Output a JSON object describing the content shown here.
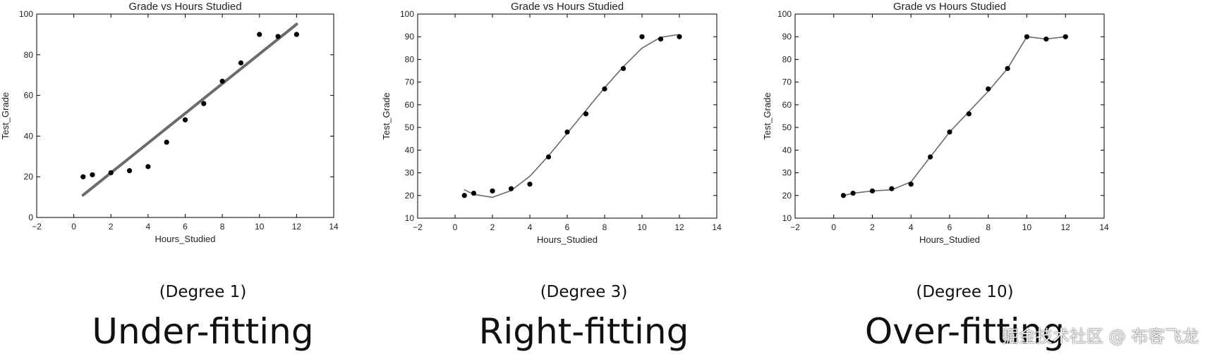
{
  "chart_data": [
    {
      "type": "scatter",
      "title": "Grade vs Hours Studied",
      "xlabel": "Hours_Studied",
      "ylabel": "Test_Grade",
      "xlim": [
        -2,
        14
      ],
      "ylim": [
        0,
        100
      ],
      "xticks": [
        "−2",
        "0",
        "2",
        "4",
        "6",
        "8",
        "10",
        "12",
        "14"
      ],
      "yticks": [
        "0",
        "20",
        "40",
        "60",
        "80",
        "100"
      ],
      "points": [
        [
          0.5,
          20
        ],
        [
          1,
          21
        ],
        [
          2,
          22
        ],
        [
          3,
          23
        ],
        [
          4,
          25
        ],
        [
          5,
          37
        ],
        [
          6,
          48
        ],
        [
          7,
          56
        ],
        [
          8,
          67
        ],
        [
          9,
          76
        ],
        [
          10,
          90
        ],
        [
          11,
          89
        ],
        [
          12,
          90
        ]
      ],
      "fit": {
        "kind": "linear",
        "x": [
          0.5,
          12
        ],
        "y": [
          11,
          95
        ]
      },
      "grid": false
    },
    {
      "type": "scatter",
      "title": "Grade vs Hours Studied",
      "xlabel": "Hours_Studied",
      "ylabel": "Test_Grade",
      "xlim": [
        -2,
        14
      ],
      "ylim": [
        10,
        100
      ],
      "xticks": [
        "−2",
        "0",
        "2",
        "4",
        "6",
        "8",
        "10",
        "12",
        "14"
      ],
      "yticks": [
        "10",
        "20",
        "30",
        "40",
        "50",
        "60",
        "70",
        "80",
        "90",
        "100"
      ],
      "points": [
        [
          0.5,
          20
        ],
        [
          1,
          21
        ],
        [
          2,
          22
        ],
        [
          3,
          23
        ],
        [
          4,
          25
        ],
        [
          5,
          37
        ],
        [
          6,
          48
        ],
        [
          7,
          56
        ],
        [
          8,
          67
        ],
        [
          9,
          76
        ],
        [
          10,
          90
        ],
        [
          11,
          89
        ],
        [
          12,
          90
        ]
      ],
      "fit": {
        "kind": "cubic",
        "x": [
          0.5,
          1,
          2,
          3,
          4,
          5,
          6,
          7,
          8,
          9,
          10,
          11,
          12
        ],
        "y": [
          22.5,
          20.5,
          19.2,
          22.2,
          28.5,
          37.5,
          47.5,
          57.5,
          67.5,
          76.8,
          85,
          89.8,
          91
        ]
      },
      "grid": false
    },
    {
      "type": "scatter",
      "title": "Grade vs Hours Studied",
      "xlabel": "Hours_Studied",
      "ylabel": "Test_Grade",
      "xlim": [
        -2,
        14
      ],
      "ylim": [
        10,
        100
      ],
      "xticks": [
        "−2",
        "0",
        "2",
        "4",
        "6",
        "8",
        "10",
        "12",
        "14"
      ],
      "yticks": [
        "10",
        "20",
        "30",
        "40",
        "50",
        "60",
        "70",
        "80",
        "90",
        "100"
      ],
      "points": [
        [
          0.5,
          20
        ],
        [
          1,
          21
        ],
        [
          2,
          22
        ],
        [
          3,
          23
        ],
        [
          4,
          25
        ],
        [
          5,
          37
        ],
        [
          6,
          48
        ],
        [
          7,
          56
        ],
        [
          8,
          67
        ],
        [
          9,
          76
        ],
        [
          10,
          90
        ],
        [
          11,
          89
        ],
        [
          12,
          90
        ]
      ],
      "fit": {
        "kind": "degree-10",
        "x": [
          0.5,
          1,
          2,
          3,
          4,
          5,
          6,
          7,
          8,
          9,
          10,
          11,
          12
        ],
        "y": [
          20,
          21,
          22,
          22.5,
          26,
          37,
          48,
          57,
          66,
          76,
          90,
          89,
          90
        ]
      },
      "grid": false
    }
  ],
  "captions": [
    {
      "degree": "(Degree 1)",
      "fit": "Under-fitting"
    },
    {
      "degree": "(Degree 3)",
      "fit": "Right-fitting"
    },
    {
      "degree": "(Degree 10)",
      "fit": "Over-fitting"
    }
  ],
  "watermark": "掘金技术社区 @ 布客飞龙",
  "colors": {
    "fit_line": "#6b6b6b",
    "marker": "#000000",
    "axes": "#000000"
  }
}
